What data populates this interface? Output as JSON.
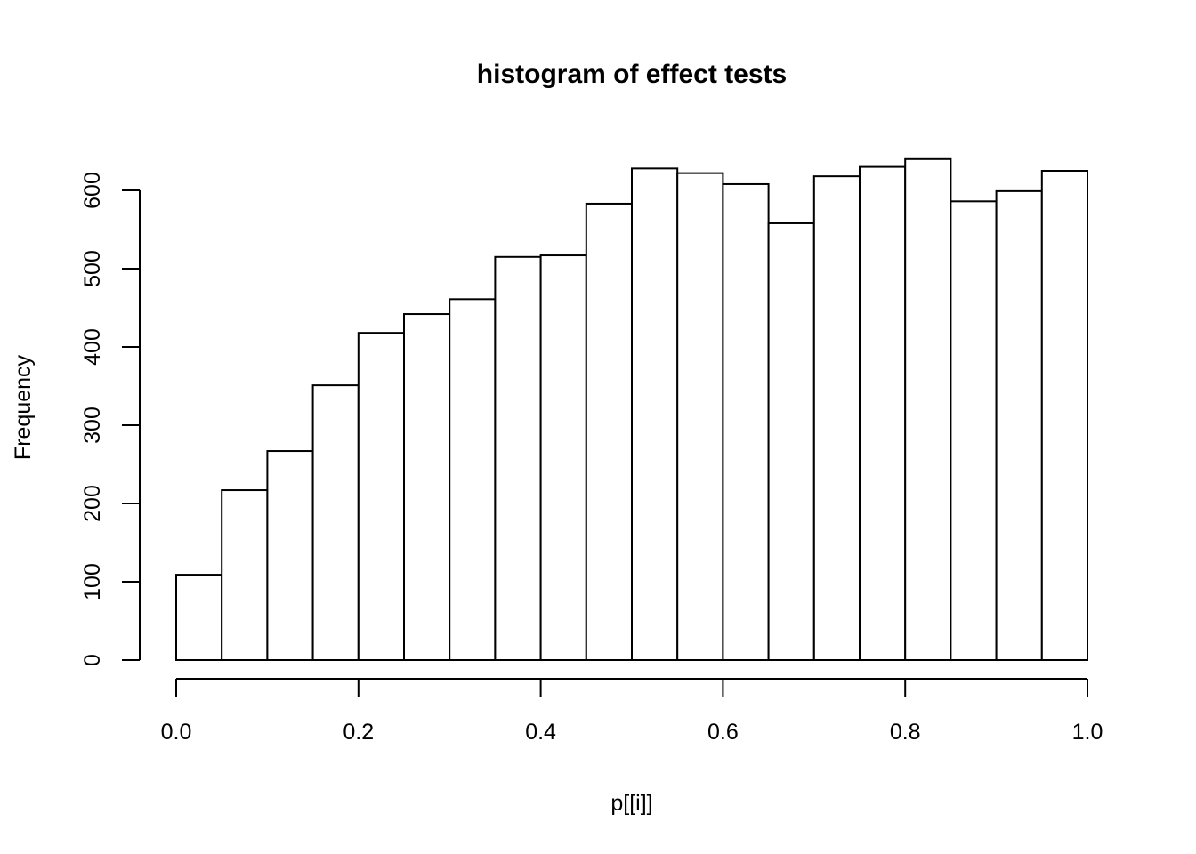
{
  "page": {
    "background": "#ffffff"
  },
  "chart_data": {
    "type": "bar",
    "subtype": "histogram",
    "title": "histogram of effect tests",
    "xlabel": "p[[i]]",
    "ylabel": "Frequency",
    "xlim": [
      0.0,
      1.0
    ],
    "ylim": [
      0,
      600
    ],
    "bin_width": 0.05,
    "bin_edges": [
      0.0,
      0.05,
      0.1,
      0.15,
      0.2,
      0.25,
      0.3,
      0.35,
      0.4,
      0.45,
      0.5,
      0.55,
      0.6,
      0.65,
      0.7,
      0.75,
      0.8,
      0.85,
      0.9,
      0.95,
      1.0
    ],
    "values": [
      109,
      217,
      267,
      351,
      418,
      442,
      461,
      515,
      517,
      583,
      628,
      622,
      608,
      558,
      618,
      630,
      640,
      586,
      599,
      625
    ],
    "x_ticks": [
      0.0,
      0.2,
      0.4,
      0.6,
      0.8,
      1.0
    ],
    "x_tick_labels": [
      "0.0",
      "0.2",
      "0.4",
      "0.6",
      "0.8",
      "1.0"
    ],
    "y_ticks": [
      0,
      100,
      200,
      300,
      400,
      500,
      600
    ],
    "y_tick_labels": [
      "0",
      "100",
      "200",
      "300",
      "400",
      "500",
      "600"
    ],
    "grid": false,
    "legend": null,
    "bar_fill": "#ffffff",
    "bar_stroke": "#000000",
    "axis_color": "#000000",
    "text_color": "#000000"
  }
}
